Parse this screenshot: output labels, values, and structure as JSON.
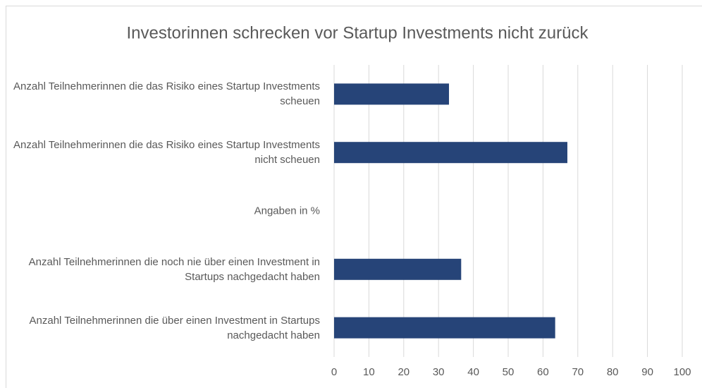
{
  "chart_data": {
    "type": "hbar",
    "title": "Investorinnen schrecken vor Startup Investments nicht zurück",
    "categories": [
      "Anzahl Teilnehmerinnen die das Risiko eines Startup Investments scheuen",
      "Anzahl Teilnehmerinnen die das Risiko eines Startup Investments nicht scheuen",
      "Angaben in %",
      "Anzahl Teilnehmerinnen die noch nie über einen Investment in Startups nachgedacht haben",
      "Anzahl Teilnehmerinnen die über einen Investment in Startups nachgedacht haben"
    ],
    "values": [
      33,
      67,
      null,
      36.5,
      63.5
    ],
    "color": "#264478",
    "xlim": [
      0,
      100
    ],
    "xticks": [
      0,
      10,
      20,
      30,
      40,
      50,
      60,
      70,
      80,
      90,
      100
    ],
    "grid": true
  }
}
